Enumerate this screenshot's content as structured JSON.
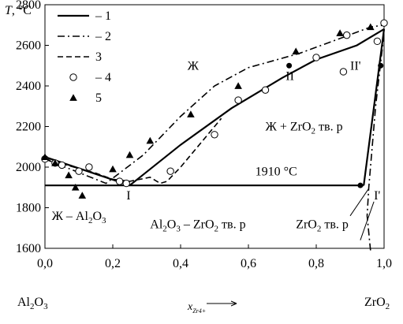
{
  "chart_data": {
    "type": "line",
    "ylabel_symbol": "T",
    "ylabel_unit": ", °C",
    "xlabel_symbol": "x",
    "xlabel_sub": "Zr4+",
    "x_left_label": "Al2O3",
    "x_right_label": "ZrO2",
    "xlim": [
      0,
      1
    ],
    "ylim": [
      1600,
      2800
    ],
    "xticks": [
      {
        "value": 0.0,
        "label": "0,0"
      },
      {
        "value": 0.2,
        "label": "0,2"
      },
      {
        "value": 0.4,
        "label": "0,4"
      },
      {
        "value": 0.6,
        "label": "0,6"
      },
      {
        "value": 0.8,
        "label": "0,8"
      },
      {
        "value": 1.0,
        "label": "1,0"
      }
    ],
    "yticks": [
      {
        "value": 1600,
        "label": "1600"
      },
      {
        "value": 1800,
        "label": "1800"
      },
      {
        "value": 2000,
        "label": "2000"
      },
      {
        "value": 2200,
        "label": "2200"
      },
      {
        "value": 2400,
        "label": "2400"
      },
      {
        "value": 2600,
        "label": "2600"
      },
      {
        "value": 2800,
        "label": "2800"
      }
    ],
    "legend": [
      {
        "marker": "solid-line",
        "label": "– 1"
      },
      {
        "marker": "dashdot-line",
        "label": "– 2"
      },
      {
        "marker": "dash-line",
        "label": "3"
      },
      {
        "marker": "open-circle",
        "label": "– 4"
      },
      {
        "marker": "filled-triangle",
        "label": "5"
      }
    ],
    "lines": {
      "solid_liquidus_left": [
        [
          0.0,
          2050
        ],
        [
          0.25,
          1910
        ]
      ],
      "solid_liquidus_right": [
        [
          0.25,
          1910
        ],
        [
          0.4,
          2110
        ],
        [
          0.55,
          2290
        ],
        [
          0.7,
          2440
        ],
        [
          0.8,
          2530
        ],
        [
          0.92,
          2600
        ],
        [
          1.0,
          2680
        ]
      ],
      "solid_eutectic": [
        [
          0.0,
          1910
        ],
        [
          0.94,
          1910
        ]
      ],
      "solid_solidus": [
        [
          0.94,
          1910
        ],
        [
          1.0,
          2680
        ]
      ],
      "dashdot_liquidus": [
        [
          0.0,
          2040
        ],
        [
          0.18,
          1920
        ],
        [
          0.29,
          2060
        ],
        [
          0.4,
          2250
        ],
        [
          0.5,
          2400
        ],
        [
          0.6,
          2490
        ],
        [
          0.75,
          2560
        ],
        [
          0.88,
          2640
        ],
        [
          0.96,
          2690
        ],
        [
          1.0,
          2700
        ]
      ],
      "dashdot_solvus": [
        [
          0.96,
          1590
        ],
        [
          0.95,
          1760
        ],
        [
          0.955,
          1900
        ],
        [
          0.975,
          2300
        ],
        [
          1.0,
          2660
        ]
      ],
      "dash_curve": [
        [
          0.0,
          2040
        ],
        [
          0.15,
          1970
        ],
        [
          0.2,
          1940
        ],
        [
          0.25,
          1930
        ],
        [
          0.31,
          1950
        ],
        [
          0.34,
          1920
        ],
        [
          0.36,
          1930
        ],
        [
          0.4,
          2000
        ],
        [
          0.45,
          2100
        ],
        [
          0.5,
          2200
        ],
        [
          0.52,
          2240
        ]
      ]
    },
    "series_circles": [
      [
        0.0,
        2040
      ],
      [
        0.03,
        2020
      ],
      [
        0.05,
        2010
      ],
      [
        0.1,
        1980
      ],
      [
        0.13,
        2000
      ],
      [
        0.22,
        1930
      ],
      [
        0.24,
        1920
      ],
      [
        0.37,
        1980
      ],
      [
        0.5,
        2160
      ],
      [
        0.57,
        2330
      ],
      [
        0.65,
        2380
      ],
      [
        0.8,
        2540
      ],
      [
        0.89,
        2650
      ],
      [
        0.88,
        2470
      ],
      [
        0.98,
        2620
      ],
      [
        1.0,
        2710
      ]
    ],
    "series_triangles": [
      [
        0.0,
        2050
      ],
      [
        0.03,
        2020
      ],
      [
        0.07,
        1960
      ],
      [
        0.09,
        1900
      ],
      [
        0.11,
        1860
      ],
      [
        0.2,
        1990
      ],
      [
        0.25,
        2060
      ],
      [
        0.31,
        2130
      ],
      [
        0.43,
        2260
      ],
      [
        0.57,
        2400
      ],
      [
        0.74,
        2570
      ],
      [
        0.87,
        2660
      ],
      [
        0.96,
        2690
      ]
    ],
    "series_filled_circles": [
      [
        0.72,
        2500
      ],
      [
        0.93,
        1910
      ],
      [
        0.99,
        2500
      ]
    ],
    "annotations": [
      {
        "text": "Ж",
        "x": 0.42,
        "y": 2480
      },
      {
        "text": "Ж + ZrO",
        "sub": "2",
        "tail": " тв. р",
        "x": 0.65,
        "y": 2180
      },
      {
        "text": "1910 °C",
        "x": 0.62,
        "y": 1960
      },
      {
        "text": "Ж – Al",
        "sub": "2",
        "mid": "O",
        "sub2": "3",
        "x": 0.02,
        "y": 1740
      },
      {
        "text": "Al",
        "sub": "2",
        "mid": "O",
        "sub2": "3",
        "tail": " – ZrO",
        "sub3": "2",
        "tail2": " тв. р",
        "x": 0.31,
        "y": 1700
      },
      {
        "text": "ZrO",
        "sub": "2",
        "tail": " тв. р",
        "x": 0.74,
        "y": 1700
      },
      {
        "text": "I",
        "x": 0.24,
        "y": 1840
      },
      {
        "text": "II",
        "x": 0.71,
        "y": 2430
      },
      {
        "text": "II'",
        "x": 0.9,
        "y": 2480
      },
      {
        "text": "I'",
        "x": 0.97,
        "y": 1840
      }
    ]
  }
}
